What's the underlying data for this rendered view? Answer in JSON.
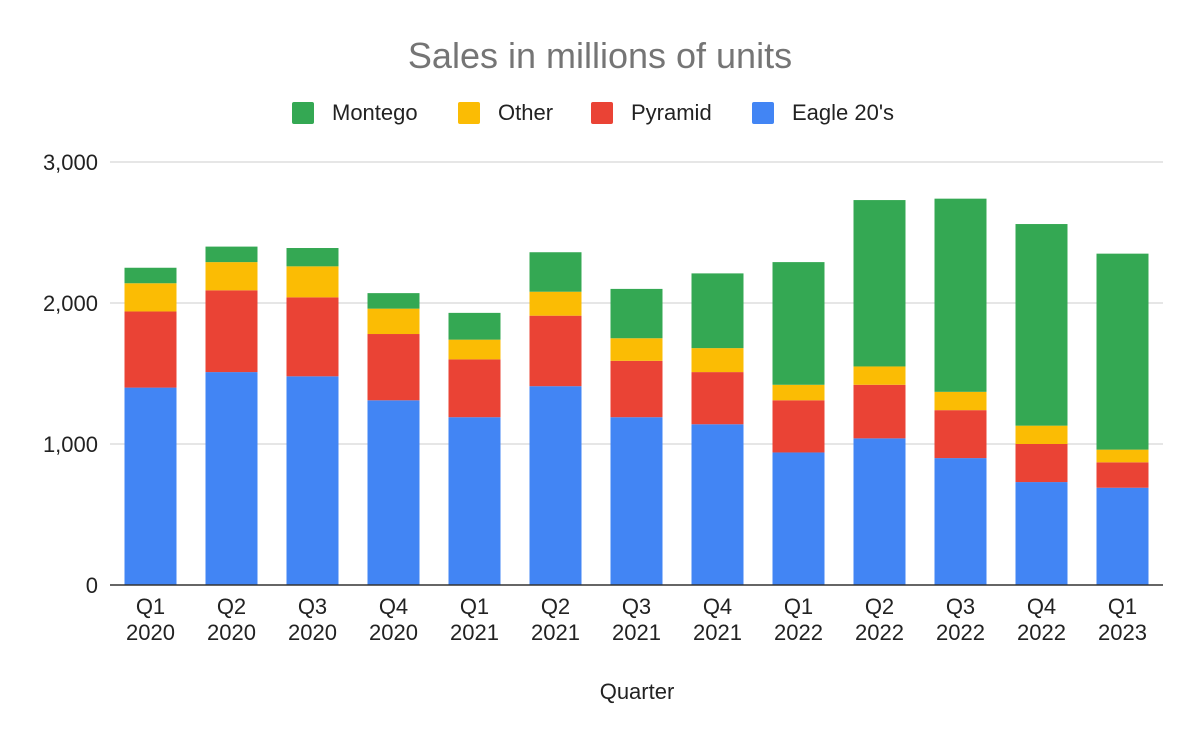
{
  "chart_data": {
    "type": "bar",
    "stacked": true,
    "title": "Sales in millions of units",
    "xlabel": "Quarter",
    "ylabel": "",
    "ylim": [
      0,
      3000
    ],
    "yticks": [
      0,
      1000,
      2000,
      3000
    ],
    "ytick_labels": [
      "0",
      "1,000",
      "2,000",
      "3,000"
    ],
    "grid": true,
    "legend_position": "top-center",
    "categories": [
      [
        "Q1",
        "2020"
      ],
      [
        "Q2",
        "2020"
      ],
      [
        "Q3",
        "2020"
      ],
      [
        "Q4",
        "2020"
      ],
      [
        "Q1",
        "2021"
      ],
      [
        "Q2",
        "2021"
      ],
      [
        "Q3",
        "2021"
      ],
      [
        "Q4",
        "2021"
      ],
      [
        "Q1",
        "2022"
      ],
      [
        "Q2",
        "2022"
      ],
      [
        "Q3",
        "2022"
      ],
      [
        "Q4",
        "2022"
      ],
      [
        "Q1",
        "2023"
      ]
    ],
    "legend_order": [
      "Montego",
      "Other",
      "Pyramid",
      "Eagle 20's"
    ],
    "series": [
      {
        "name": "Eagle 20's",
        "color": "#4285f4",
        "values": [
          1400,
          1510,
          1480,
          1310,
          1190,
          1410,
          1190,
          1140,
          940,
          1040,
          900,
          730,
          690
        ]
      },
      {
        "name": "Pyramid",
        "color": "#ea4335",
        "values": [
          540,
          580,
          560,
          470,
          410,
          500,
          400,
          370,
          370,
          380,
          340,
          270,
          180
        ]
      },
      {
        "name": "Other",
        "color": "#fbbc04",
        "values": [
          200,
          200,
          220,
          180,
          140,
          170,
          160,
          170,
          110,
          130,
          130,
          130,
          90
        ]
      },
      {
        "name": "Montego",
        "color": "#34a853",
        "values": [
          110,
          110,
          130,
          110,
          190,
          280,
          350,
          530,
          870,
          1180,
          1370,
          1430,
          1390
        ]
      }
    ]
  }
}
